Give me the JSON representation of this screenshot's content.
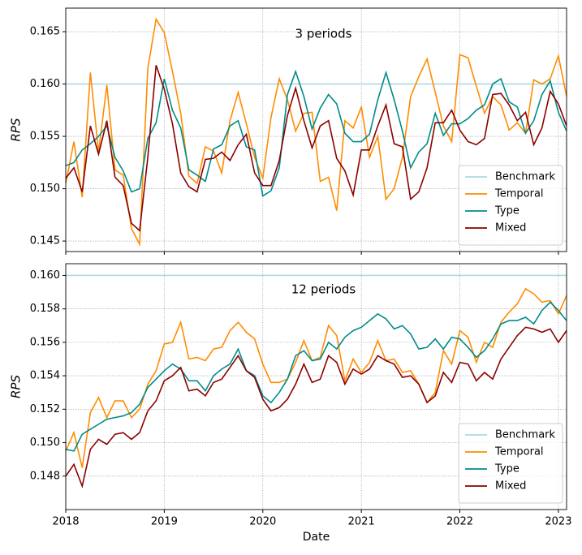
{
  "chart_data": [
    {
      "type": "line",
      "title": "3 periods",
      "ylabel": "RPS",
      "x": [
        2018,
        2018.083,
        2018.167,
        2018.25,
        2018.333,
        2018.417,
        2018.5,
        2018.583,
        2018.667,
        2018.75,
        2018.833,
        2018.917,
        2019,
        2019.083,
        2019.167,
        2019.25,
        2019.333,
        2019.417,
        2019.5,
        2019.583,
        2019.667,
        2019.75,
        2019.833,
        2019.917,
        2020,
        2020.083,
        2020.167,
        2020.25,
        2020.333,
        2020.417,
        2020.5,
        2020.583,
        2020.667,
        2020.75,
        2020.833,
        2020.917,
        2021,
        2021.083,
        2021.167,
        2021.25,
        2021.333,
        2021.417,
        2021.5,
        2021.583,
        2021.667,
        2021.75,
        2021.833,
        2021.917,
        2022,
        2022.083,
        2022.167,
        2022.25,
        2022.333,
        2022.417,
        2022.5,
        2022.583,
        2022.667,
        2022.75,
        2022.833,
        2022.917,
        2023,
        2023.083
      ],
      "xlim": [
        2018,
        2023.083
      ],
      "xticks": [
        2018,
        2019,
        2020,
        2021,
        2022,
        2023
      ],
      "ylim": [
        0.144,
        0.16725
      ],
      "yticks": [
        0.145,
        {
          "value": 0.15,
          "label": "0.150"
        },
        0.155,
        {
          "value": 0.16,
          "label": "0.160"
        },
        0.165
      ],
      "grid": true,
      "legend": "lower right",
      "series": [
        {
          "name": "Benchmark",
          "color": "#add8e6",
          "values": [
            0.16,
            0.16,
            0.16,
            0.16,
            0.16,
            0.16,
            0.16,
            0.16,
            0.16,
            0.16,
            0.16,
            0.16,
            0.16,
            0.16,
            0.16,
            0.16,
            0.16,
            0.16,
            0.16,
            0.16,
            0.16,
            0.16,
            0.16,
            0.16,
            0.16,
            0.16,
            0.16,
            0.16,
            0.16,
            0.16,
            0.16,
            0.16,
            0.16,
            0.16,
            0.16,
            0.16,
            0.16,
            0.16,
            0.16,
            0.16,
            0.16,
            0.16,
            0.16,
            0.16,
            0.16,
            0.16,
            0.16,
            0.16,
            0.16,
            0.16,
            0.16,
            0.16,
            0.16,
            0.16,
            0.16,
            0.16,
            0.16,
            0.16,
            0.16,
            0.16,
            0.16,
            0.16
          ]
        },
        {
          "name": "Temporal",
          "color": "#ff8c00",
          "values": [
            0.1505,
            0.1545,
            0.1492,
            0.1611,
            0.1535,
            0.1599,
            0.1518,
            0.1513,
            0.1462,
            0.1447,
            0.1615,
            0.1662,
            0.1649,
            0.1612,
            0.1572,
            0.1512,
            0.1505,
            0.154,
            0.1536,
            0.1515,
            0.1565,
            0.1592,
            0.1562,
            0.153,
            0.151,
            0.1568,
            0.1605,
            0.1585,
            0.1555,
            0.1572,
            0.1573,
            0.1507,
            0.1511,
            0.1479,
            0.1565,
            0.1558,
            0.1578,
            0.153,
            0.155,
            0.149,
            0.15,
            0.153,
            0.1588,
            0.1607,
            0.1624,
            0.1592,
            0.156,
            0.1545,
            0.1628,
            0.1625,
            0.1598,
            0.1572,
            0.1588,
            0.158,
            0.1556,
            0.1563,
            0.1553,
            0.1604,
            0.16,
            0.1605,
            0.1627,
            0.1588
          ]
        },
        {
          "name": "Type",
          "color": "#008b8b",
          "values": [
            0.1522,
            0.1525,
            0.1537,
            0.1543,
            0.155,
            0.156,
            0.153,
            0.1517,
            0.1497,
            0.15,
            0.1548,
            0.1563,
            0.1605,
            0.1575,
            0.1558,
            0.1518,
            0.1513,
            0.1507,
            0.1538,
            0.1542,
            0.156,
            0.1565,
            0.154,
            0.1537,
            0.1493,
            0.1498,
            0.152,
            0.159,
            0.1612,
            0.1588,
            0.1557,
            0.1577,
            0.159,
            0.1581,
            0.1553,
            0.1545,
            0.1545,
            0.1552,
            0.1585,
            0.1611,
            0.1585,
            0.1555,
            0.152,
            0.1535,
            0.1543,
            0.1572,
            0.1551,
            0.1562,
            0.1562,
            0.1567,
            0.1575,
            0.158,
            0.16,
            0.1605,
            0.1583,
            0.1578,
            0.1553,
            0.1565,
            0.159,
            0.1603,
            0.1573,
            0.1555
          ]
        },
        {
          "name": "Mixed",
          "color": "#8b0000",
          "values": [
            0.151,
            0.152,
            0.1497,
            0.156,
            0.1533,
            0.1565,
            0.1511,
            0.1503,
            0.1467,
            0.146,
            0.153,
            0.1618,
            0.1595,
            0.1562,
            0.1515,
            0.1502,
            0.1497,
            0.1528,
            0.1529,
            0.1535,
            0.1527,
            0.1542,
            0.1552,
            0.1515,
            0.1503,
            0.1503,
            0.1527,
            0.157,
            0.1596,
            0.1565,
            0.1539,
            0.156,
            0.1565,
            0.1529,
            0.1517,
            0.1494,
            0.1537,
            0.1537,
            0.156,
            0.158,
            0.1543,
            0.154,
            0.149,
            0.1497,
            0.152,
            0.1563,
            0.1563,
            0.1575,
            0.1556,
            0.1545,
            0.1542,
            0.1548,
            0.159,
            0.1591,
            0.158,
            0.1565,
            0.1573,
            0.1542,
            0.1558,
            0.1593,
            0.1581,
            0.156
          ]
        }
      ]
    },
    {
      "type": "line",
      "title": "12 periods",
      "ylabel": "RPS",
      "xlabel": "Date",
      "x": [
        2018,
        2018.083,
        2018.167,
        2018.25,
        2018.333,
        2018.417,
        2018.5,
        2018.583,
        2018.667,
        2018.75,
        2018.833,
        2018.917,
        2019,
        2019.083,
        2019.167,
        2019.25,
        2019.333,
        2019.417,
        2019.5,
        2019.583,
        2019.667,
        2019.75,
        2019.833,
        2019.917,
        2020,
        2020.083,
        2020.167,
        2020.25,
        2020.333,
        2020.417,
        2020.5,
        2020.583,
        2020.667,
        2020.75,
        2020.833,
        2020.917,
        2021,
        2021.083,
        2021.167,
        2021.25,
        2021.333,
        2021.417,
        2021.5,
        2021.583,
        2021.667,
        2021.75,
        2021.833,
        2021.917,
        2022,
        2022.083,
        2022.167,
        2022.25,
        2022.333,
        2022.417,
        2022.5,
        2022.583,
        2022.667,
        2022.75,
        2022.833,
        2022.917,
        2023,
        2023.083
      ],
      "xlim": [
        2018,
        2023.083
      ],
      "xticks": [
        2018,
        2019,
        2020,
        2021,
        2022,
        2023
      ],
      "ylim": [
        0.146,
        0.1607
      ],
      "yticks": [
        0.148,
        {
          "value": 0.15,
          "label": "0.150"
        },
        0.152,
        0.154,
        0.156,
        0.158,
        {
          "value": 0.16,
          "label": "0.160"
        }
      ],
      "grid": true,
      "legend": "lower right",
      "series": [
        {
          "name": "Benchmark",
          "color": "#add8e6",
          "values": [
            0.16,
            0.16,
            0.16,
            0.16,
            0.16,
            0.16,
            0.16,
            0.16,
            0.16,
            0.16,
            0.16,
            0.16,
            0.16,
            0.16,
            0.16,
            0.16,
            0.16,
            0.16,
            0.16,
            0.16,
            0.16,
            0.16,
            0.16,
            0.16,
            0.16,
            0.16,
            0.16,
            0.16,
            0.16,
            0.16,
            0.16,
            0.16,
            0.16,
            0.16,
            0.16,
            0.16,
            0.16,
            0.16,
            0.16,
            0.16,
            0.16,
            0.16,
            0.16,
            0.16,
            0.16,
            0.16,
            0.16,
            0.16,
            0.16,
            0.16,
            0.16,
            0.16,
            0.16,
            0.16,
            0.16,
            0.16,
            0.16,
            0.16,
            0.16,
            0.16,
            0.16,
            0.16
          ]
        },
        {
          "name": "Temporal",
          "color": "#ff8c00",
          "values": [
            0.1495,
            0.1506,
            0.1485,
            0.1518,
            0.1527,
            0.1515,
            0.1525,
            0.1525,
            0.1515,
            0.152,
            0.1535,
            0.1543,
            0.1559,
            0.156,
            0.1572,
            0.155,
            0.1551,
            0.1549,
            0.1556,
            0.1557,
            0.1567,
            0.1572,
            0.1566,
            0.1562,
            0.1547,
            0.1536,
            0.1536,
            0.1538,
            0.1548,
            0.1561,
            0.1549,
            0.1551,
            0.157,
            0.1564,
            0.1537,
            0.155,
            0.1542,
            0.1548,
            0.1561,
            0.1549,
            0.155,
            0.1542,
            0.1543,
            0.1535,
            0.1524,
            0.153,
            0.1555,
            0.1547,
            0.1567,
            0.1563,
            0.1548,
            0.156,
            0.1557,
            0.1572,
            0.1578,
            0.1583,
            0.1592,
            0.1589,
            0.1584,
            0.1585,
            0.1577,
            0.1588
          ]
        },
        {
          "name": "Type",
          "color": "#008b8b",
          "values": [
            0.1496,
            0.1495,
            0.1505,
            0.1508,
            0.1511,
            0.1514,
            0.1515,
            0.1516,
            0.1518,
            0.1523,
            0.1533,
            0.1538,
            0.1543,
            0.1547,
            0.1544,
            0.1537,
            0.1537,
            0.1531,
            0.154,
            0.1544,
            0.1547,
            0.1556,
            0.1543,
            0.154,
            0.1528,
            0.1524,
            0.153,
            0.1538,
            0.1552,
            0.1555,
            0.1549,
            0.155,
            0.156,
            0.1556,
            0.1563,
            0.1567,
            0.1569,
            0.1573,
            0.1577,
            0.1574,
            0.1568,
            0.157,
            0.1565,
            0.1556,
            0.1557,
            0.1562,
            0.1556,
            0.1563,
            0.1562,
            0.1557,
            0.1551,
            0.1555,
            0.1562,
            0.1571,
            0.1573,
            0.1573,
            0.1575,
            0.1571,
            0.1579,
            0.1584,
            0.1579,
            0.1573
          ]
        },
        {
          "name": "Mixed",
          "color": "#8b0000",
          "values": [
            0.148,
            0.1487,
            0.1474,
            0.1496,
            0.1502,
            0.1499,
            0.1505,
            0.1506,
            0.1502,
            0.1506,
            0.1519,
            0.1525,
            0.1537,
            0.154,
            0.1545,
            0.1531,
            0.1532,
            0.1528,
            0.1536,
            0.1538,
            0.1545,
            0.1552,
            0.1543,
            0.1539,
            0.1526,
            0.1519,
            0.1521,
            0.1526,
            0.1535,
            0.1547,
            0.1536,
            0.1538,
            0.1552,
            0.1548,
            0.1535,
            0.1544,
            0.1541,
            0.1544,
            0.1552,
            0.1549,
            0.1547,
            0.1539,
            0.154,
            0.1535,
            0.1524,
            0.1528,
            0.1542,
            0.1536,
            0.1548,
            0.1547,
            0.1537,
            0.1542,
            0.1538,
            0.155,
            0.1557,
            0.1564,
            0.1569,
            0.1568,
            0.1566,
            0.1568,
            0.156,
            0.1567
          ]
        }
      ]
    }
  ]
}
